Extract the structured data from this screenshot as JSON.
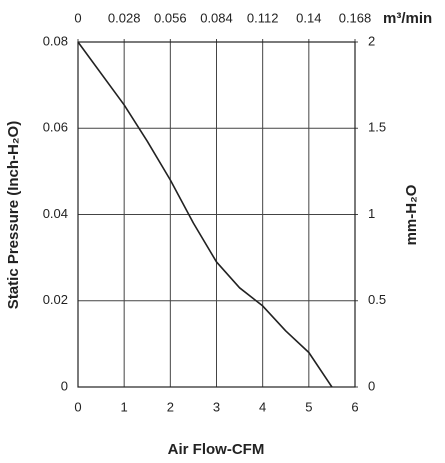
{
  "chart_data": {
    "type": "line",
    "x_label": "Air Flow-CFM",
    "y_label": "Static Pressure (Inch-H₂O)",
    "y2_label": "mm-H₂O",
    "x2_label": "m³/min",
    "x": [
      0,
      1,
      1.5,
      2,
      2.5,
      3,
      3.5,
      4,
      4.5,
      5,
      5.5
    ],
    "values": [
      0.08,
      0.0654,
      0.057,
      0.048,
      0.038,
      0.029,
      0.023,
      0.0188,
      0.013,
      0.008,
      0
    ],
    "color": "#222222",
    "xlim": [
      0,
      6
    ],
    "xticks": [
      0,
      1,
      2,
      3,
      4,
      5,
      6
    ],
    "x2lim": [
      0,
      0.168
    ],
    "x2ticks": [
      0,
      0.028,
      0.056,
      0.084,
      0.112,
      0.14,
      0.168
    ],
    "ylim": [
      0,
      0.08
    ],
    "yticks": [
      0,
      0.02,
      0.04,
      0.06,
      0.08
    ],
    "y2lim": [
      0,
      2
    ],
    "y2ticks": [
      0,
      0.5,
      1,
      1.5,
      2
    ],
    "grid": true
  }
}
